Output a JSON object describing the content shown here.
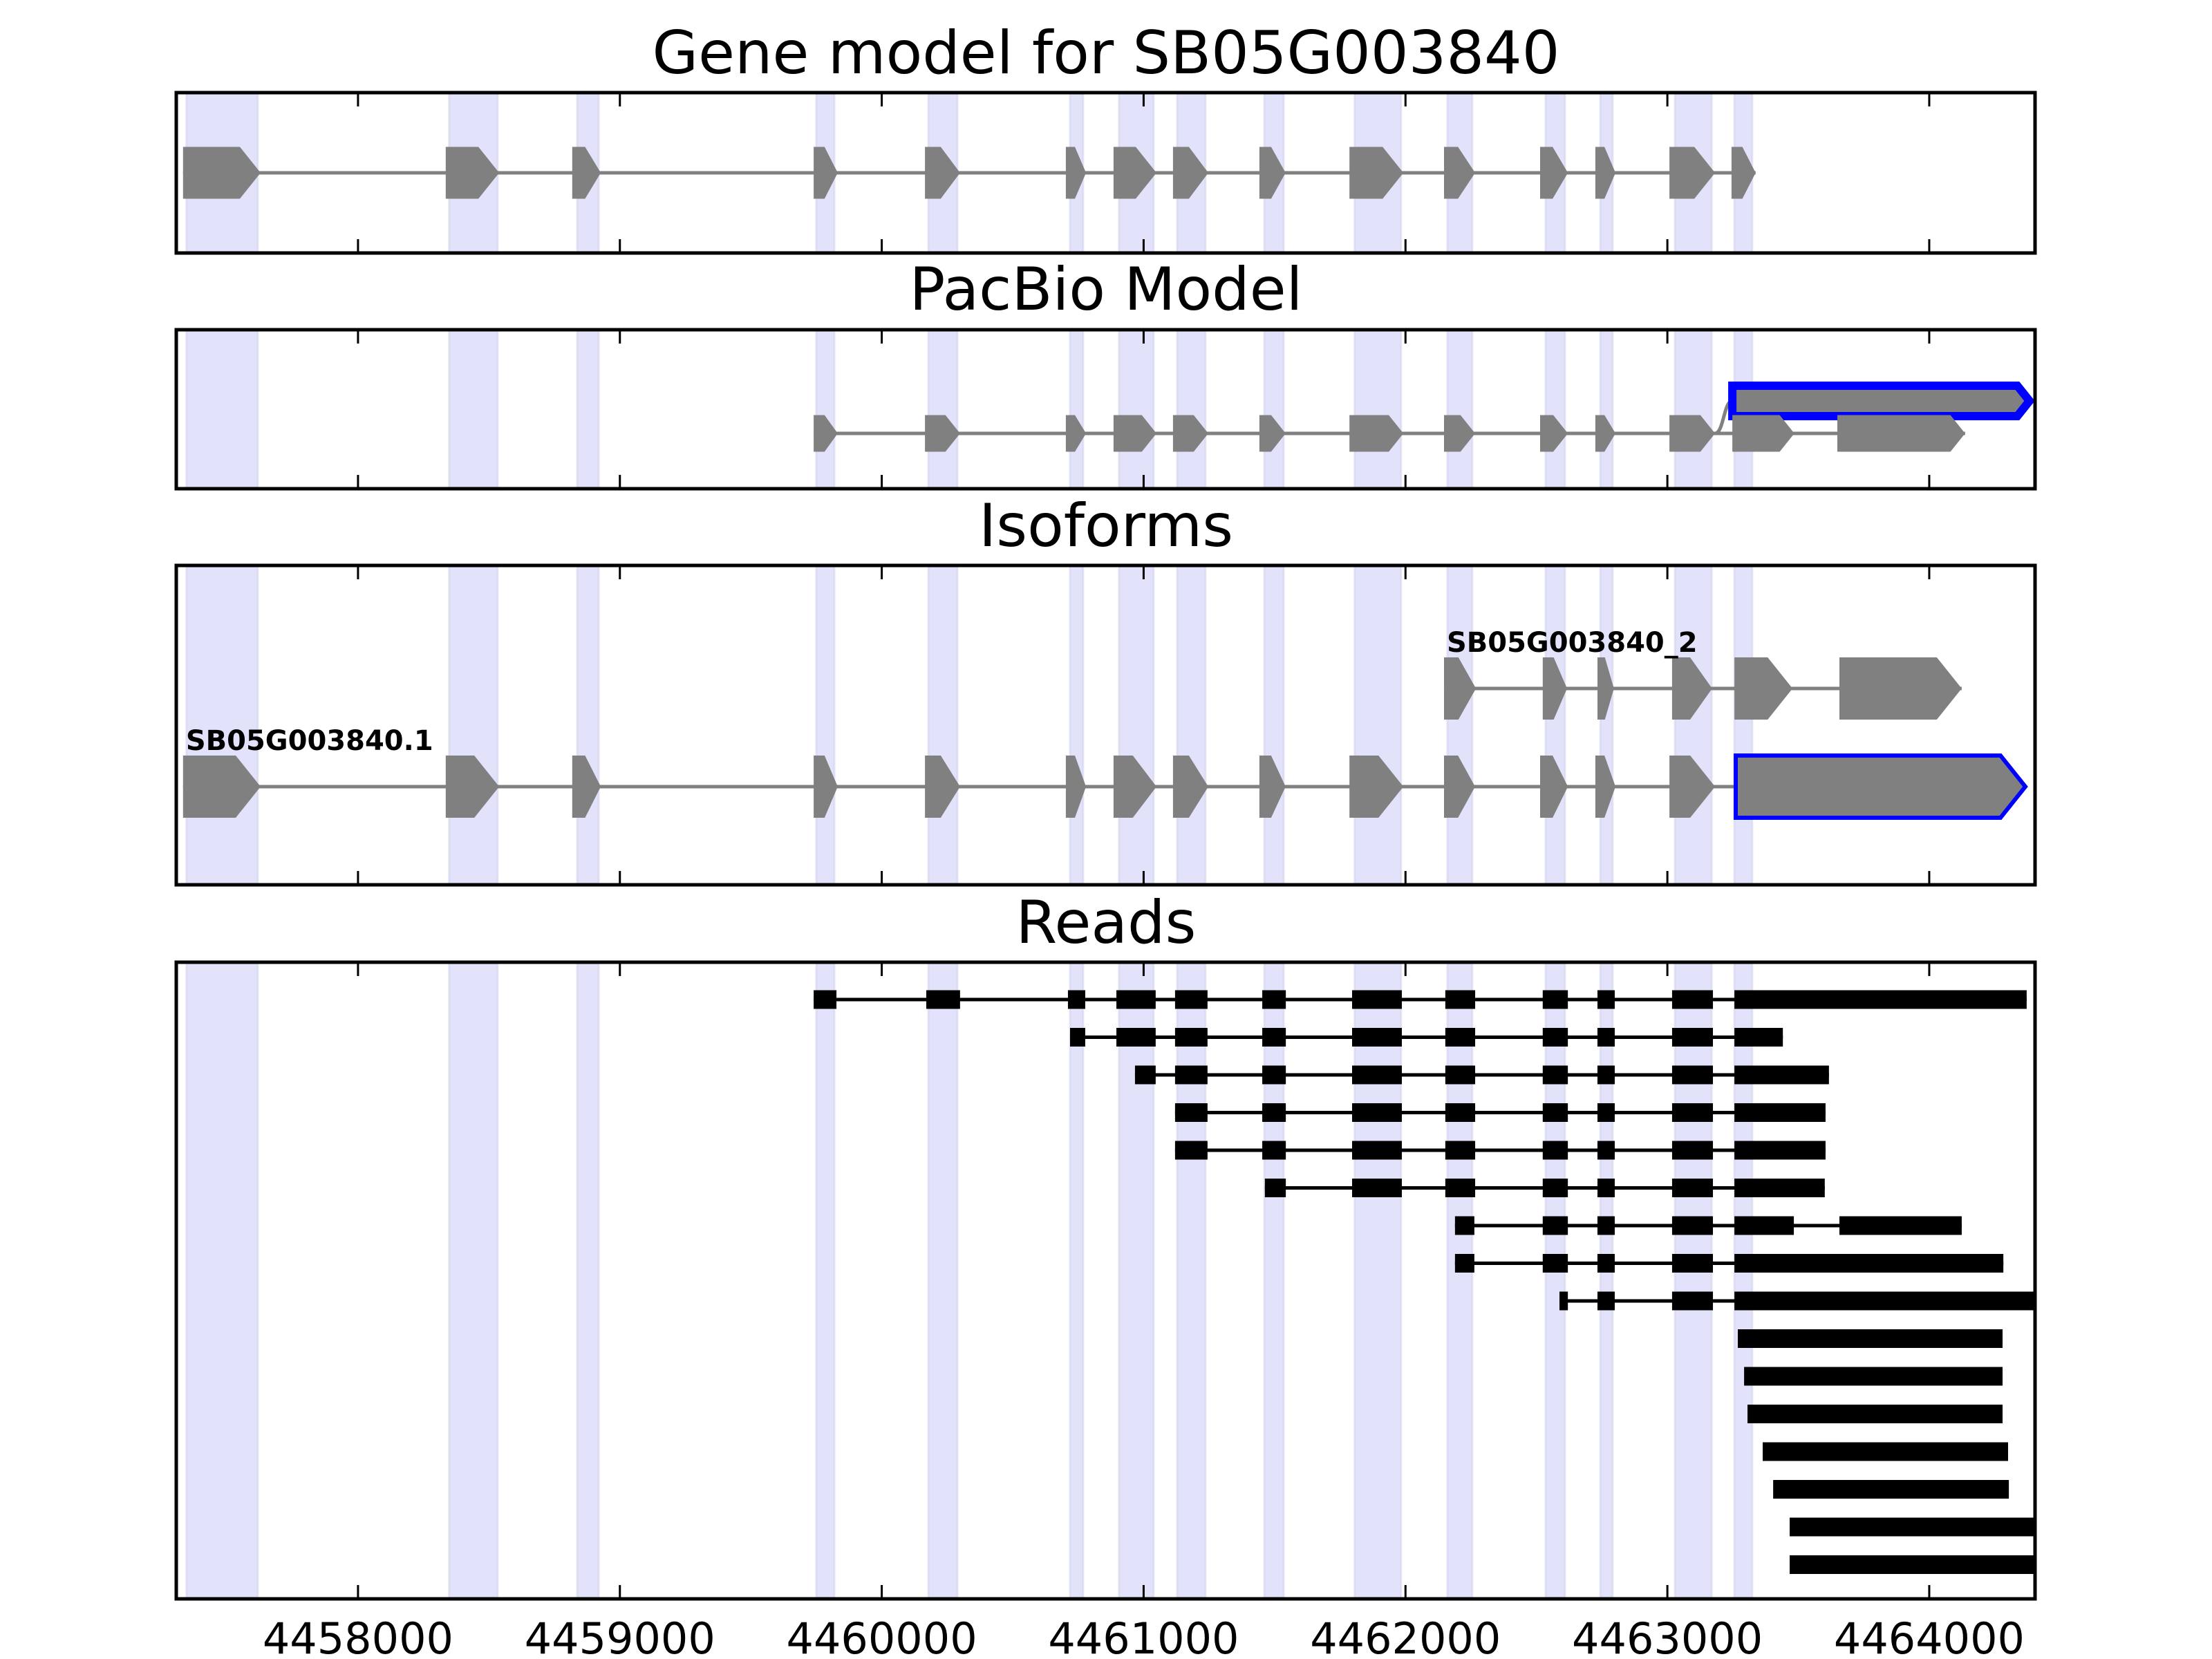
{
  "chart_data": {
    "type": "gene-model-track",
    "title": "Gene model for SB05G003840",
    "xlabel": "",
    "xlim": [
      4457306,
      4464404
    ],
    "xticks": [
      4458000,
      4459000,
      4460000,
      4461000,
      4462000,
      4463000,
      4464000
    ],
    "xtick_labels": [
      "4458000",
      "4459000",
      "4460000",
      "4461000",
      "4462000",
      "4463000",
      "4464000"
    ],
    "grid": false,
    "colors": {
      "shade": "#e2e2fb",
      "shade_edge": "#d4d4ec",
      "exon_fill": "#808080",
      "intron_line": "#808080",
      "highlight_outline": "#0000ff",
      "read_fill": "#000000"
    },
    "shaded_exon_regions": [
      [
        4457345,
        4457617
      ],
      [
        4458348,
        4458533
      ],
      [
        4458837,
        4458919
      ],
      [
        4459750,
        4459819
      ],
      [
        4460178,
        4460289
      ],
      [
        4460719,
        4460769
      ],
      [
        4460906,
        4461038
      ],
      [
        4461128,
        4461236
      ],
      [
        4461461,
        4461535
      ],
      [
        4461806,
        4461983
      ],
      [
        4462160,
        4462255
      ],
      [
        4462535,
        4462609
      ],
      [
        4462744,
        4462791
      ],
      [
        4463029,
        4463169
      ],
      [
        4463256,
        4463324
      ]
    ],
    "panels": [
      {
        "id": "gene-model",
        "title": "Gene model for SB05G003840",
        "tracks": [
          {
            "label": "",
            "exons": [
              [
                4457332,
                4457628
              ],
              [
                4458335,
                4458539
              ],
              [
                4458818,
                4458927
              ],
              [
                4459740,
                4459832
              ],
              [
                4460165,
                4460299
              ],
              [
                4460703,
                4460780
              ],
              [
                4460885,
                4461049
              ],
              [
                4461112,
                4461247
              ],
              [
                4461442,
                4461542
              ],
              [
                4461786,
                4461992
              ],
              [
                4462147,
                4462266
              ],
              [
                4462514,
                4462620
              ],
              [
                4462725,
                4462802
              ],
              [
                4463008,
                4463182
              ],
              [
                4463245,
                4463337
              ]
            ]
          }
        ]
      },
      {
        "id": "pacbio-model",
        "title": "PacBio Model",
        "tracks": [
          {
            "label": "",
            "highlighted": true,
            "exons": [
              [
                4463248,
                4464383
              ]
            ]
          },
          {
            "label": "",
            "exons": [
              [
                4459740,
                4459832
              ],
              [
                4460165,
                4460299
              ],
              [
                4460703,
                4460780
              ],
              [
                4460885,
                4461049
              ],
              [
                4461112,
                4461247
              ],
              [
                4461442,
                4461542
              ],
              [
                4461786,
                4461992
              ],
              [
                4462147,
                4462266
              ],
              [
                4462514,
                4462620
              ],
              [
                4462725,
                4462802
              ],
              [
                4463008,
                4463182
              ],
              [
                4463248,
                4463485
              ],
              [
                4463649,
                4464137
              ]
            ]
          }
        ],
        "connector": {
          "from_track": 1,
          "from_exon": 10,
          "to_track": 0,
          "to_exon": 0
        }
      },
      {
        "id": "isoforms",
        "title": "Isoforms",
        "tracks": [
          {
            "label": "SB05G003840_2",
            "exons": [
              [
                4462147,
                4462269
              ],
              [
                4462524,
                4462617
              ],
              [
                4462733,
                4462796
              ],
              [
                4463018,
                4463171
              ],
              [
                4463256,
                4463478
              ],
              [
                4463657,
                4464124
              ]
            ]
          },
          {
            "label": "SB05G003840.1",
            "exons": [
              [
                4457332,
                4457628
              ],
              [
                4458335,
                4458539
              ],
              [
                4458818,
                4458927
              ],
              [
                4459740,
                4459832
              ],
              [
                4460165,
                4460299
              ],
              [
                4460703,
                4460780
              ],
              [
                4460885,
                4461049
              ],
              [
                4461112,
                4461247
              ],
              [
                4461442,
                4461542
              ],
              [
                4461786,
                4461992
              ],
              [
                4462147,
                4462266
              ],
              [
                4462514,
                4462620
              ],
              [
                4462725,
                4462802
              ],
              [
                4463008,
                4463182
              ],
              [
                4463261,
                4464367,
                "highlight"
              ]
            ]
          }
        ]
      },
      {
        "id": "reads",
        "title": "Reads",
        "reads": [
          [
            [
              4459740,
              4459827
            ],
            [
              4460170,
              4460299
            ],
            [
              4460711,
              4460777
            ],
            [
              4460896,
              4461046
            ],
            [
              4461120,
              4461244
            ],
            [
              4461453,
              4461543
            ],
            [
              4461796,
              4461986
            ],
            [
              4462152,
              4462266
            ],
            [
              4462524,
              4462620
            ],
            [
              4462733,
              4462799
            ],
            [
              4463018,
              4463174
            ],
            [
              4463256,
              4464372
            ]
          ],
          [
            [
              4460719,
              4460777
            ],
            [
              4460896,
              4461046
            ],
            [
              4461120,
              4461244
            ],
            [
              4461453,
              4461543
            ],
            [
              4461796,
              4461986
            ],
            [
              4462152,
              4462266
            ],
            [
              4462524,
              4462620
            ],
            [
              4462733,
              4462799
            ],
            [
              4463018,
              4463174
            ],
            [
              4463256,
              4463441
            ]
          ],
          [
            [
              4460967,
              4461046
            ],
            [
              4461120,
              4461244
            ],
            [
              4461453,
              4461543
            ],
            [
              4461796,
              4461986
            ],
            [
              4462152,
              4462266
            ],
            [
              4462524,
              4462620
            ],
            [
              4462733,
              4462799
            ],
            [
              4463018,
              4463174
            ],
            [
              4463256,
              4463617
            ]
          ],
          [
            [
              4461120,
              4461244
            ],
            [
              4461453,
              4461543
            ],
            [
              4461796,
              4461986
            ],
            [
              4462152,
              4462266
            ],
            [
              4462524,
              4462620
            ],
            [
              4462733,
              4462799
            ],
            [
              4463018,
              4463174
            ],
            [
              4463256,
              4463604
            ]
          ],
          [
            [
              4461120,
              4461244
            ],
            [
              4461453,
              4461543
            ],
            [
              4461796,
              4461986
            ],
            [
              4462152,
              4462266
            ],
            [
              4462524,
              4462620
            ],
            [
              4462733,
              4462799
            ],
            [
              4463018,
              4463174
            ],
            [
              4463256,
              4463604
            ]
          ],
          [
            [
              4461463,
              4461543
            ],
            [
              4461796,
              4461986
            ],
            [
              4462152,
              4462266
            ],
            [
              4462524,
              4462620
            ],
            [
              4462733,
              4462799
            ],
            [
              4463018,
              4463174
            ],
            [
              4463256,
              4463601
            ]
          ],
          [
            [
              4462189,
              4462263
            ],
            [
              4462524,
              4462620
            ],
            [
              4462733,
              4462799
            ],
            [
              4463018,
              4463174
            ],
            [
              4463256,
              4463483
            ],
            [
              4463657,
              4464124
            ]
          ],
          [
            [
              4462189,
              4462263
            ],
            [
              4462524,
              4462620
            ],
            [
              4462733,
              4462799
            ],
            [
              4463018,
              4463174
            ],
            [
              4463256,
              4464283
            ]
          ],
          [
            [
              4462588,
              4462620
            ],
            [
              4462733,
              4462799
            ],
            [
              4463018,
              4463174
            ],
            [
              4463256,
              4464404
            ]
          ],
          [
            [
              4463269,
              4464280
            ]
          ],
          [
            [
              4463293,
              4464280
            ]
          ],
          [
            [
              4463306,
              4464280
            ]
          ],
          [
            [
              4463364,
              4464301
            ]
          ],
          [
            [
              4463404,
              4464304
            ]
          ],
          [
            [
              4463467,
              4464404
            ]
          ],
          [
            [
              4463467,
              4464404
            ]
          ]
        ]
      }
    ]
  }
}
